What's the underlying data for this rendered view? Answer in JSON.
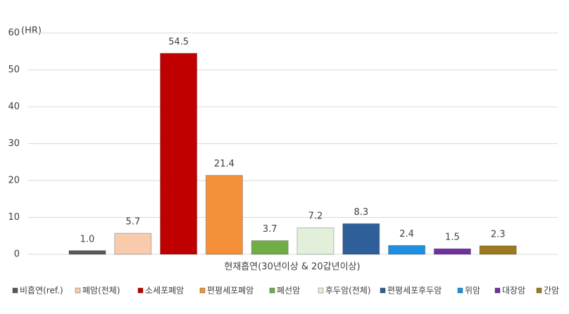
{
  "chart_data": {
    "type": "bar",
    "y_label": "(HR)",
    "categories": [
      "현재흡연(30년이상 & 20갑년이상)"
    ],
    "ylim": [
      0,
      60
    ],
    "yticks": [
      0,
      10,
      20,
      30,
      40,
      50,
      60
    ],
    "grid": true,
    "legend": "bottom",
    "series": [
      {
        "name": "비흡연(ref.)",
        "color": "#595959",
        "values": [
          1.0
        ],
        "value_labels": [
          "1.0"
        ]
      },
      {
        "name": "폐암(전체)",
        "color": "#f8cbad",
        "values": [
          5.7
        ]
      },
      {
        "name": "소세포폐암",
        "color": "#c00000",
        "values": [
          54.5
        ]
      },
      {
        "name": "편평세포폐암",
        "color": "#f4903a",
        "values": [
          21.4
        ]
      },
      {
        "name": "폐선암",
        "color": "#70ad47",
        "values": [
          3.7
        ]
      },
      {
        "name": "후두암(전체)",
        "color": "#e2efda",
        "values": [
          7.2
        ]
      },
      {
        "name": "편평세포후두암",
        "color": "#2e5f9a",
        "values": [
          8.3
        ]
      },
      {
        "name": "위암",
        "color": "#1f8fe0",
        "values": [
          2.4
        ]
      },
      {
        "name": "대장암",
        "color": "#7030a0",
        "values": [
          1.5
        ]
      },
      {
        "name": "간암",
        "color": "#9c7a1f",
        "values": [
          2.3
        ]
      }
    ]
  }
}
